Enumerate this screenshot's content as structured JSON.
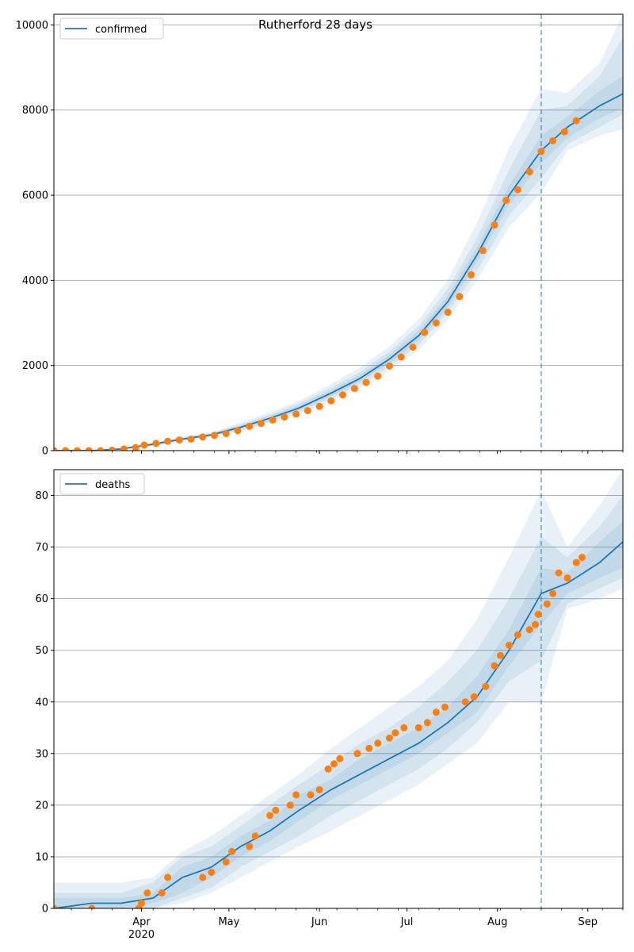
{
  "title": "Rutherford 28 days",
  "colors": {
    "model_line": "#1f77b4",
    "observed": "#ff7f0e",
    "band": "#1f77b4",
    "forecast_marker": "#1f77b4",
    "grid": "#b0b0b0"
  },
  "x_axis": {
    "start": "2020-03-02",
    "end": "2020-09-13",
    "month_ticks": [
      {
        "date": "2020-04-01",
        "label": "Apr",
        "sublabel": "2020"
      },
      {
        "date": "2020-05-01",
        "label": "May",
        "sublabel": ""
      },
      {
        "date": "2020-06-01",
        "label": "Jun",
        "sublabel": ""
      },
      {
        "date": "2020-07-01",
        "label": "Jul",
        "sublabel": ""
      },
      {
        "date": "2020-08-01",
        "label": "Aug",
        "sublabel": ""
      },
      {
        "date": "2020-09-01",
        "label": "Sep",
        "sublabel": ""
      }
    ]
  },
  "forecast_start": "2020-08-16",
  "chart_data": [
    {
      "type": "line",
      "legend": "confirmed",
      "legend_position": "upper-left",
      "ylim": [
        0,
        10250
      ],
      "yticks": [
        0,
        2000,
        4000,
        6000,
        8000,
        10000
      ],
      "grid": "horizontal",
      "model": {
        "dates": [
          "2020-03-02",
          "2020-03-15",
          "2020-03-25",
          "2020-04-05",
          "2020-04-15",
          "2020-04-25",
          "2020-05-05",
          "2020-05-15",
          "2020-05-25",
          "2020-06-05",
          "2020-06-15",
          "2020-06-25",
          "2020-07-05",
          "2020-07-15",
          "2020-07-25",
          "2020-08-05",
          "2020-08-16",
          "2020-08-25",
          "2020-09-05",
          "2020-09-13"
        ],
        "values": [
          0,
          0,
          40,
          150,
          270,
          370,
          550,
          760,
          1000,
          1350,
          1700,
          2150,
          2700,
          3500,
          4600,
          6000,
          7050,
          7600,
          8100,
          8380
        ],
        "bands": [
          {
            "lower": [
              0,
              0,
              20,
              110,
              220,
              310,
              450,
              640,
              850,
              1150,
              1470,
              1870,
              2360,
              3080,
              4000,
              5250,
              6050,
              7050,
              7400,
              7550
            ],
            "upper": [
              0,
              0,
              60,
              200,
              330,
              430,
              660,
              900,
              1170,
              1560,
              1960,
              2450,
              3080,
              4020,
              5350,
              7100,
              8500,
              8400,
              9100,
              10250
            ]
          },
          {
            "lower": [
              0,
              0,
              25,
              120,
              235,
              330,
              480,
              680,
              900,
              1220,
              1550,
              1970,
              2480,
              3240,
              4220,
              5520,
              6400,
              7200,
              7600,
              7900
            ],
            "upper": [
              0,
              0,
              55,
              185,
              310,
              410,
              620,
              850,
              1110,
              1480,
              1850,
              2330,
              2930,
              3800,
              5000,
              6600,
              8000,
              8100,
              8800,
              9700
            ]
          },
          {
            "lower": [
              0,
              0,
              30,
              130,
              250,
              345,
              510,
              715,
              945,
              1280,
              1620,
              2050,
              2580,
              3360,
              4420,
              5780,
              6750,
              7350,
              7800,
              8050
            ],
            "upper": [
              0,
              0,
              50,
              170,
              290,
              395,
              590,
              810,
              1060,
              1420,
              1780,
              2250,
              2820,
              3640,
              4780,
              6230,
              7400,
              7850,
              8450,
              8800
            ]
          }
        ]
      },
      "observed": [
        [
          "2020-03-02",
          0
        ],
        [
          "2020-03-06",
          0
        ],
        [
          "2020-03-10",
          0
        ],
        [
          "2020-03-14",
          0
        ],
        [
          "2020-03-18",
          0
        ],
        [
          "2020-03-22",
          10
        ],
        [
          "2020-03-26",
          40
        ],
        [
          "2020-03-30",
          70
        ],
        [
          "2020-04-02",
          130
        ],
        [
          "2020-04-06",
          170
        ],
        [
          "2020-04-10",
          220
        ],
        [
          "2020-04-14",
          250
        ],
        [
          "2020-04-18",
          270
        ],
        [
          "2020-04-22",
          320
        ],
        [
          "2020-04-26",
          360
        ],
        [
          "2020-04-30",
          400
        ],
        [
          "2020-05-04",
          470
        ],
        [
          "2020-05-08",
          570
        ],
        [
          "2020-05-12",
          640
        ],
        [
          "2020-05-16",
          720
        ],
        [
          "2020-05-20",
          790
        ],
        [
          "2020-05-24",
          860
        ],
        [
          "2020-05-28",
          940
        ],
        [
          "2020-06-01",
          1040
        ],
        [
          "2020-06-05",
          1170
        ],
        [
          "2020-06-09",
          1310
        ],
        [
          "2020-06-13",
          1460
        ],
        [
          "2020-06-17",
          1600
        ],
        [
          "2020-06-21",
          1750
        ],
        [
          "2020-06-25",
          1990
        ],
        [
          "2020-06-29",
          2200
        ],
        [
          "2020-07-03",
          2430
        ],
        [
          "2020-07-07",
          2780
        ],
        [
          "2020-07-11",
          3000
        ],
        [
          "2020-07-15",
          3250
        ],
        [
          "2020-07-19",
          3620
        ],
        [
          "2020-07-23",
          4130
        ],
        [
          "2020-07-27",
          4700
        ],
        [
          "2020-07-31",
          5300
        ],
        [
          "2020-08-04",
          5880
        ],
        [
          "2020-08-08",
          6130
        ],
        [
          "2020-08-12",
          6550
        ],
        [
          "2020-08-16",
          7030
        ],
        [
          "2020-08-20",
          7280
        ],
        [
          "2020-08-24",
          7490
        ],
        [
          "2020-08-28",
          7750
        ]
      ]
    },
    {
      "type": "line",
      "legend": "deaths",
      "legend_position": "upper-left",
      "ylim": [
        0,
        85
      ],
      "yticks": [
        0,
        10,
        20,
        30,
        40,
        50,
        60,
        70,
        80
      ],
      "grid": "horizontal",
      "model": {
        "dates": [
          "2020-03-02",
          "2020-03-15",
          "2020-03-25",
          "2020-04-05",
          "2020-04-15",
          "2020-04-25",
          "2020-05-05",
          "2020-05-15",
          "2020-05-25",
          "2020-06-05",
          "2020-06-15",
          "2020-06-25",
          "2020-07-05",
          "2020-07-15",
          "2020-07-25",
          "2020-08-05",
          "2020-08-16",
          "2020-08-25",
          "2020-09-05",
          "2020-09-13"
        ],
        "values": [
          0,
          1,
          1,
          2,
          6,
          8,
          12,
          15,
          19,
          23,
          26,
          29,
          32,
          36,
          41,
          50,
          61,
          63,
          67,
          71
        ],
        "bands": [
          {
            "lower": [
              0,
              0,
              0,
              0,
              1,
              3,
              6,
              9,
              12,
              15,
              18,
              21,
              24,
              28,
              32,
              40,
              40,
              58,
              60,
              62
            ],
            "upper": [
              5,
              5,
              5,
              6,
              11,
              14,
              18,
              22,
              26,
              31,
              35,
              39,
              43,
              48,
              56,
              68,
              81,
              70,
              78,
              85
            ]
          },
          {
            "lower": [
              0,
              0,
              0,
              0,
              2,
              4,
              8,
              11,
              14,
              18,
              21,
              24,
              27,
              31,
              36,
              44,
              48,
              59,
              62,
              64
            ],
            "upper": [
              3,
              3,
              3,
              5,
              10,
              12,
              16,
              20,
              24,
              28,
              32,
              35,
              39,
              44,
              50,
              60,
              72,
              68,
              74,
              80
            ]
          },
          {
            "lower": [
              0,
              0,
              0,
              1,
              3,
              6,
              10,
              13,
              17,
              21,
              24,
              27,
              30,
              34,
              38,
              47,
              55,
              61,
              64,
              66
            ],
            "upper": [
              2,
              2,
              2,
              3,
              8,
              10,
              14,
              17,
              22,
              25,
              29,
              32,
              35,
              39,
              45,
              54,
              66,
              65,
              71,
              75
            ]
          }
        ]
      },
      "observed": [
        [
          "2020-03-02",
          0
        ],
        [
          "2020-03-15",
          0
        ],
        [
          "2020-03-31",
          0
        ],
        [
          "2020-04-01",
          1
        ],
        [
          "2020-04-03",
          3
        ],
        [
          "2020-04-08",
          3
        ],
        [
          "2020-04-10",
          6
        ],
        [
          "2020-04-22",
          6
        ],
        [
          "2020-04-25",
          7
        ],
        [
          "2020-04-30",
          9
        ],
        [
          "2020-05-02",
          11
        ],
        [
          "2020-05-08",
          12
        ],
        [
          "2020-05-10",
          14
        ],
        [
          "2020-05-15",
          18
        ],
        [
          "2020-05-17",
          19
        ],
        [
          "2020-05-22",
          20
        ],
        [
          "2020-05-24",
          22
        ],
        [
          "2020-05-29",
          22
        ],
        [
          "2020-06-01",
          23
        ],
        [
          "2020-06-04",
          27
        ],
        [
          "2020-06-06",
          28
        ],
        [
          "2020-06-08",
          29
        ],
        [
          "2020-06-14",
          30
        ],
        [
          "2020-06-18",
          31
        ],
        [
          "2020-06-21",
          32
        ],
        [
          "2020-06-25",
          33
        ],
        [
          "2020-06-27",
          34
        ],
        [
          "2020-06-30",
          35
        ],
        [
          "2020-07-05",
          35
        ],
        [
          "2020-07-08",
          36
        ],
        [
          "2020-07-11",
          38
        ],
        [
          "2020-07-14",
          39
        ],
        [
          "2020-07-21",
          40
        ],
        [
          "2020-07-24",
          41
        ],
        [
          "2020-07-28",
          43
        ],
        [
          "2020-07-31",
          47
        ],
        [
          "2020-08-02",
          49
        ],
        [
          "2020-08-05",
          51
        ],
        [
          "2020-08-08",
          53
        ],
        [
          "2020-08-12",
          54
        ],
        [
          "2020-08-14",
          55
        ],
        [
          "2020-08-15",
          57
        ],
        [
          "2020-08-18",
          59
        ],
        [
          "2020-08-20",
          61
        ],
        [
          "2020-08-22",
          65
        ],
        [
          "2020-08-25",
          64
        ],
        [
          "2020-08-28",
          67
        ],
        [
          "2020-08-30",
          68
        ]
      ]
    }
  ]
}
